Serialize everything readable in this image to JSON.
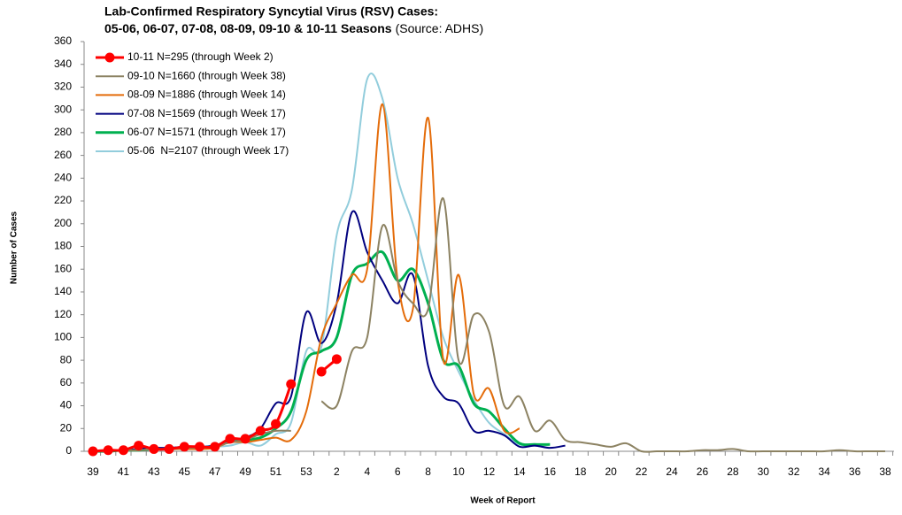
{
  "chart_data": {
    "type": "line",
    "title": [
      "Lab-Confirmed Respiratory Syncytial Virus (RSV) Cases:",
      "05-06, 06-07, 07-08, 08-09, 09-10 & 10-11 Seasons"
    ],
    "source": "(Source: ADHS)",
    "y_label": "Number of Cases",
    "x_label": "Week of Report",
    "categories": [
      "39",
      null,
      "41",
      null,
      "43",
      null,
      "45",
      null,
      "47",
      null,
      "49",
      null,
      "51",
      null,
      "53",
      null,
      "2",
      null,
      "4",
      null,
      "6",
      null,
      "8",
      null,
      "10",
      null,
      "12",
      null,
      "14",
      null,
      "16",
      null,
      "18",
      null,
      "20",
      null,
      "22",
      null,
      "24",
      null,
      "26",
      null,
      "28",
      null,
      "30",
      null,
      "32",
      null,
      "34",
      null,
      "36",
      null,
      "38"
    ],
    "ylim": [
      0,
      360
    ],
    "yticks": [
      0,
      20,
      40,
      60,
      80,
      100,
      120,
      140,
      160,
      180,
      200,
      220,
      240,
      260,
      280,
      300,
      320,
      340,
      360
    ],
    "series": [
      {
        "name": "10-11 N=295 (through Week 2)",
        "color": "#ff0000",
        "markers": true,
        "values": [
          0,
          1,
          1,
          5,
          2,
          2,
          4,
          4,
          4,
          11,
          11,
          18,
          24,
          59,
          null,
          70,
          81,
          null,
          null,
          null,
          null,
          null,
          null,
          null,
          null,
          null,
          null,
          null,
          null,
          null,
          null,
          null,
          null,
          null,
          null,
          null,
          null,
          null,
          null,
          null,
          null,
          null,
          null,
          null,
          null,
          null,
          null,
          null,
          null,
          null,
          null,
          null,
          null
        ]
      },
      {
        "name": "09-10 N=1660 (through Week 38)",
        "color": "#8c8262",
        "values": [
          0,
          0,
          1,
          1,
          2,
          2,
          3,
          3,
          4,
          8,
          10,
          15,
          18,
          18,
          null,
          44,
          40,
          88,
          100,
          198,
          150,
          130,
          125,
          222,
          80,
          120,
          105,
          40,
          48,
          18,
          27,
          10,
          8,
          6,
          4,
          7,
          0,
          0,
          0,
          0,
          1,
          1,
          2,
          0,
          0,
          0,
          0,
          0,
          0,
          1,
          0,
          0,
          0
        ]
      },
      {
        "name": "08-09 N=1886 (through Week 14)",
        "color": "#e46c0a",
        "values": [
          0,
          0,
          1,
          1,
          2,
          2,
          2,
          2,
          3,
          8,
          8,
          10,
          12,
          10,
          35,
          100,
          130,
          155,
          160,
          305,
          150,
          125,
          293,
          80,
          155,
          50,
          55,
          18,
          20,
          null,
          null,
          null,
          null,
          null,
          null,
          null,
          null,
          null,
          null,
          null,
          null,
          null,
          null,
          null,
          null,
          null,
          null,
          null,
          null,
          null,
          null,
          null,
          null
        ]
      },
      {
        "name": "07-08 N=1569 (through Week 17)",
        "color": "#00007f",
        "values": [
          0,
          0,
          1,
          2,
          3,
          3,
          4,
          4,
          5,
          10,
          12,
          20,
          42,
          48,
          122,
          95,
          130,
          210,
          175,
          150,
          130,
          155,
          75,
          48,
          42,
          18,
          18,
          14,
          4,
          5,
          3,
          5,
          null,
          null,
          null,
          null,
          null,
          null,
          null,
          null,
          null,
          null,
          null,
          null,
          null,
          null,
          null,
          null,
          null,
          null,
          null,
          null,
          null
        ]
      },
      {
        "name": "06-07 N=1571 (through Week 17)",
        "color": "#00b050",
        "values": [
          0,
          0,
          1,
          1,
          2,
          2,
          3,
          3,
          5,
          8,
          10,
          12,
          20,
          35,
          80,
          88,
          100,
          155,
          165,
          175,
          150,
          160,
          130,
          80,
          75,
          42,
          35,
          20,
          7,
          6,
          6,
          null,
          null,
          null,
          null,
          null,
          null,
          null,
          null,
          null,
          null,
          null,
          null,
          null,
          null,
          null,
          null,
          null,
          null,
          null,
          null,
          null,
          null
        ]
      },
      {
        "name": "05-06  N=2107 (through Week 17)",
        "color": "#92cddc",
        "values": [
          0,
          1,
          1,
          1,
          2,
          2,
          2,
          3,
          4,
          5,
          8,
          5,
          15,
          25,
          88,
          92,
          190,
          230,
          327,
          310,
          240,
          200,
          150,
          100,
          70,
          45,
          25,
          15,
          6,
          5,
          3,
          null,
          null,
          null,
          null,
          null,
          null,
          null,
          null,
          null,
          null,
          null,
          null,
          null,
          null,
          null,
          null,
          null,
          null,
          null,
          null,
          null,
          null
        ]
      }
    ]
  }
}
